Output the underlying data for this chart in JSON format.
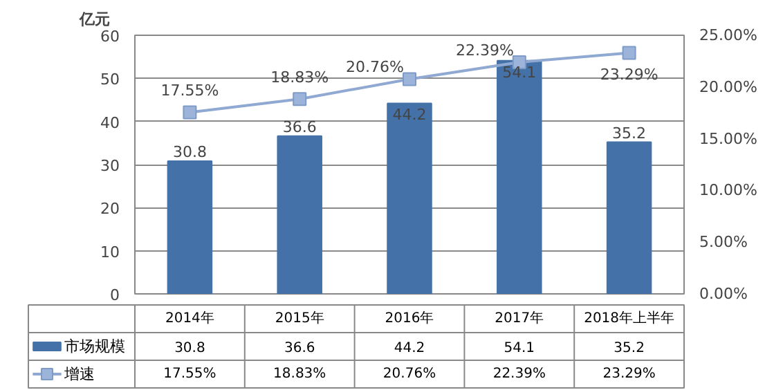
{
  "chart_data": {
    "type": "bar",
    "ylabel": "亿元",
    "categories": [
      "2014年",
      "2015年",
      "2016年",
      "2017年",
      "2018年上半年"
    ],
    "series": [
      {
        "name": "市场规模",
        "color": "#4472a8",
        "values": [
          30.8,
          36.6,
          44.2,
          54.1,
          35.2
        ],
        "value_labels": [
          "30.8",
          "36.6",
          "44.2",
          "54.1",
          "35.2"
        ]
      },
      {
        "name": "增速",
        "type": "line",
        "axis": "y2",
        "color": "#8fa9d2",
        "marker": "square",
        "values": [
          17.55,
          18.83,
          20.76,
          22.39,
          23.29
        ],
        "value_labels": [
          "17.55%",
          "18.83%",
          "20.76%",
          "22.39%",
          "23.29%"
        ]
      }
    ],
    "ylim": [
      0,
      60
    ],
    "yticks": [
      0,
      10,
      20,
      30,
      40,
      50,
      60
    ],
    "y2lim": [
      0,
      25
    ],
    "y2ticks": [
      {
        "value": 0,
        "label": "0.00%"
      },
      {
        "value": 5,
        "label": "5.00%"
      },
      {
        "value": 10,
        "label": "10.00%"
      },
      {
        "value": 15,
        "label": "15.00%"
      },
      {
        "value": 20,
        "label": "20.00%"
      },
      {
        "value": 25,
        "label": "25.00%"
      }
    ],
    "grid": "y",
    "legend": "bottom",
    "data_labels": true
  }
}
